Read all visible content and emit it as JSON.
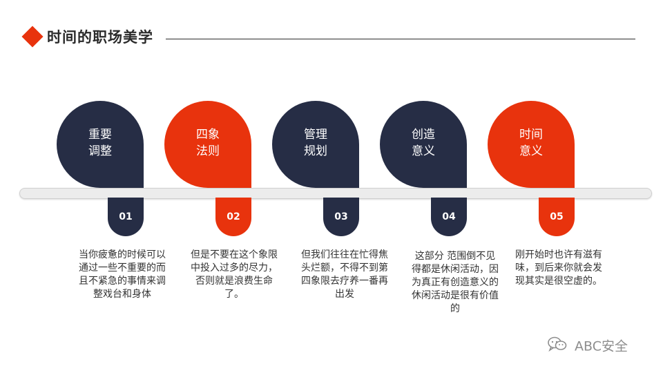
{
  "header": {
    "title": "时间的职场美学"
  },
  "steps": [
    {
      "label": "重要\n调整",
      "number": "01",
      "description": "当你疲惫的时候可以通过一些不重要的而且不紧急的事情来调整戏台和身体",
      "color": "#262d45"
    },
    {
      "label": "四象\n法则",
      "number": "02",
      "description": "但是不要在这个象限中投入过多的尽力，否则就是浪费生命了。",
      "color": "#e8330d"
    },
    {
      "label": "管理\n规划",
      "number": "03",
      "description": "但我们往往在忙得焦头烂额，不得不到第四象限去疗养一番再出发",
      "color": "#262d45"
    },
    {
      "label": "创造\n意义",
      "number": "04",
      "description": "这部分 范围倒不见得都是休闲活动，因为真正有创造意义的休闲活动是很有价值的",
      "color": "#262d45"
    },
    {
      "label": "时间\n意义",
      "number": "05",
      "description": "刚开始时也许有滋有味，到后来你就会发现其实是很空虚的。",
      "color": "#e8330d"
    }
  ],
  "watermark": {
    "text": "ABC安全",
    "icon": "wechat-icon"
  }
}
